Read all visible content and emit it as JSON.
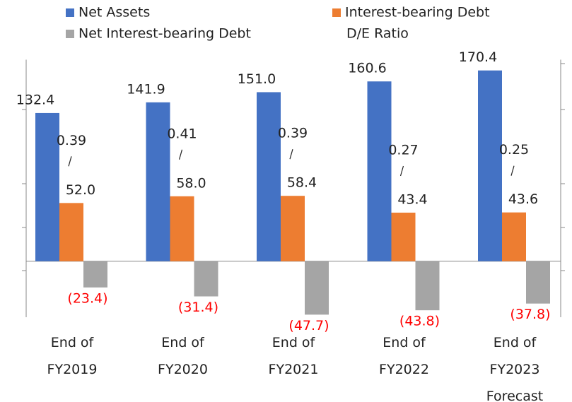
{
  "chart_data": {
    "type": "bar",
    "categories": [
      "End of\nFY2019",
      "End of\nFY2020",
      "End of\nFY2021",
      "End of\nFY2022",
      "End of\nFY2023\nForecast"
    ],
    "series": [
      {
        "name": "Net Assets",
        "color": "#4472c4",
        "values": [
          132.4,
          141.9,
          151.0,
          160.6,
          170.4
        ],
        "value_labels": [
          "132.4",
          "141.9",
          "151.0",
          "160.6",
          "170.4"
        ]
      },
      {
        "name": "Interest-bearing Debt",
        "color": "#ed7d31",
        "values": [
          52.0,
          58.0,
          58.4,
          43.4,
          43.6
        ],
        "value_labels": [
          "52.0",
          "58.0",
          "58.4",
          "43.4",
          "43.6"
        ]
      },
      {
        "name": "Net Interest-bearing Debt",
        "color": "#a5a5a5",
        "label_color": "#ff0000",
        "values": [
          -23.4,
          -31.4,
          -47.7,
          -43.8,
          -37.8
        ],
        "value_labels": [
          "(23.4)",
          "(31.4)",
          "(47.7)",
          "(43.8)",
          "(37.8)"
        ]
      },
      {
        "name": "D/E Ratio",
        "values": [
          0.39,
          0.41,
          0.39,
          0.27,
          0.25
        ]
      }
    ],
    "ylim": [
      -50,
      180
    ]
  }
}
